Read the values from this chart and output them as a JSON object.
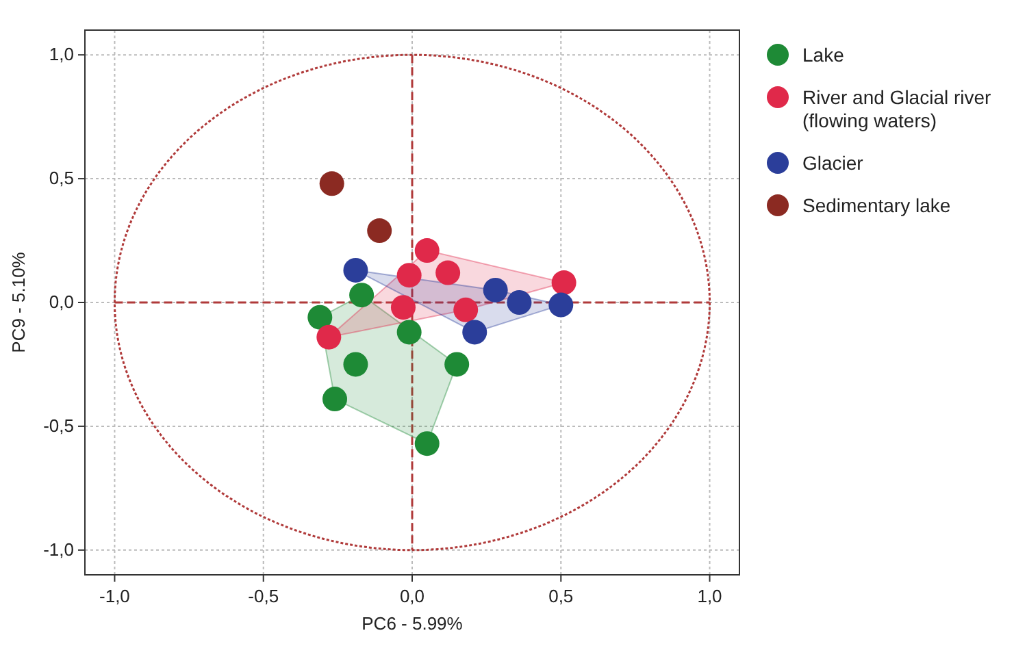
{
  "chart_data": {
    "type": "scatter",
    "xlabel": "PC6 - 5.99%",
    "ylabel": "PC9 - 5.10%",
    "xlim": [
      -1.1,
      1.1
    ],
    "ylim": [
      -1.1,
      1.1
    ],
    "xticks": [
      {
        "value": -1,
        "label": "-1,0"
      },
      {
        "value": -0.5,
        "label": "-0,5"
      },
      {
        "value": 0,
        "label": "0,0"
      },
      {
        "value": 0.5,
        "label": "0,5"
      },
      {
        "value": 1,
        "label": "1,0"
      }
    ],
    "yticks": [
      {
        "value": -1,
        "label": "-1,0"
      },
      {
        "value": -0.5,
        "label": "-0,5"
      },
      {
        "value": 0,
        "label": "0,0"
      },
      {
        "value": 0.5,
        "label": "0,5"
      },
      {
        "value": 1,
        "label": "1,0"
      }
    ],
    "grid": true,
    "legend": "right",
    "marker": "circle",
    "series": [
      {
        "name": "Lake",
        "color": "#1e8a36",
        "x": [
          -0.31,
          -0.17,
          -0.01,
          -0.19,
          -0.26,
          0.15,
          0.05
        ],
        "values": [
          -0.06,
          0.03,
          -0.12,
          -0.25,
          -0.39,
          -0.25,
          -0.57
        ]
      },
      {
        "name": "River and Glacial river (flowing waters)",
        "color": "#e0294a",
        "x": [
          0.05,
          -0.01,
          0.12,
          -0.03,
          0.18,
          -0.28,
          0.51
        ],
        "values": [
          0.21,
          0.11,
          0.12,
          -0.02,
          -0.03,
          -0.14,
          0.08
        ]
      },
      {
        "name": "Glacier",
        "color": "#2b3e9a",
        "x": [
          -0.19,
          0.28,
          0.36,
          0.5,
          0.21
        ],
        "values": [
          0.13,
          0.05,
          0.0,
          -0.01,
          -0.12
        ]
      },
      {
        "name": "Sedimentary lake",
        "color": "#8b2a22",
        "x": [
          -0.27,
          -0.11
        ],
        "values": [
          0.48,
          0.29
        ]
      }
    ]
  }
}
